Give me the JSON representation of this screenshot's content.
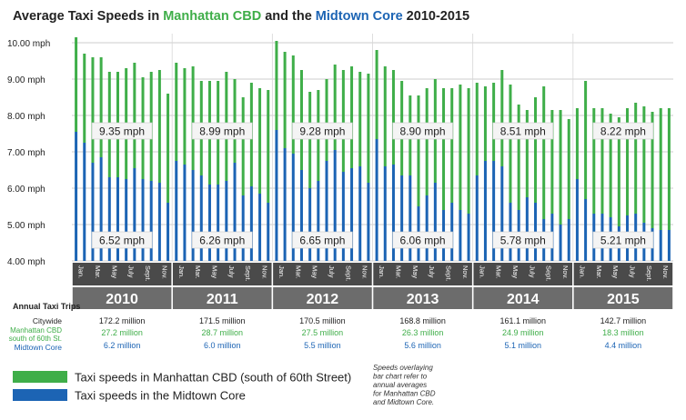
{
  "title": {
    "part1": "Average Taxi Speeds in ",
    "part2": "Manhattan CBD",
    "part3": " and the ",
    "part4": "Midtown Core",
    "part5": " 2010-2015"
  },
  "colors": {
    "cbd": "#3fae49",
    "midtown": "#1c64b4",
    "title_dark": "#222222",
    "band": "#6c6c6c",
    "band_text": "#ffffff",
    "label_box": "#f4f4f4"
  },
  "chart_data": {
    "type": "bar",
    "title": "Average Taxi Speeds in Manhattan CBD and the Midtown Core 2010-2015",
    "ylim": [
      4,
      10.25
    ],
    "y_ticks": [
      "4.00 mph",
      "5.00 mph",
      "6.00 mph",
      "7.00 mph",
      "8.00 mph",
      "9.00 mph",
      "10.00 mph"
    ],
    "y_tick_values": [
      4,
      5,
      6,
      7,
      8,
      9,
      10
    ],
    "month_labels": [
      "Jan.",
      "Mar.",
      "May",
      "July",
      "Sept.",
      "Nov."
    ],
    "month_label_positions": [
      0,
      2,
      4,
      6,
      8,
      10
    ],
    "years": [
      "2010",
      "2011",
      "2012",
      "2013",
      "2014",
      "2015"
    ],
    "series": [
      {
        "name": "Taxi speeds in Manhattan CBD (south of 60th Street)",
        "color": "#3fae49",
        "values": [
          [
            10.15,
            9.7,
            9.6,
            9.6,
            9.2,
            9.2,
            9.3,
            9.45,
            9.05,
            9.2,
            9.25,
            8.6
          ],
          [
            9.45,
            9.3,
            9.35,
            8.95,
            8.95,
            8.95,
            9.2,
            9.0,
            8.5,
            8.9,
            8.75,
            8.7
          ],
          [
            10.05,
            9.75,
            9.65,
            9.25,
            8.65,
            8.7,
            9.0,
            9.4,
            9.25,
            9.35,
            9.2,
            9.15
          ],
          [
            9.8,
            9.35,
            9.25,
            8.95,
            8.55,
            8.55,
            8.75,
            9.0,
            8.75,
            8.75,
            8.85,
            8.75
          ],
          [
            8.9,
            8.8,
            8.9,
            9.25,
            8.85,
            8.3,
            8.15,
            8.5,
            8.8,
            8.15,
            8.15,
            7.9
          ],
          [
            8.2,
            8.95,
            8.2,
            8.2,
            8.05,
            7.95,
            8.2,
            8.35,
            8.25,
            8.1,
            8.2,
            8.2
          ]
        ]
      },
      {
        "name": "Taxi speeds in the Midtown Core",
        "color": "#1c64b4",
        "values": [
          [
            7.55,
            7.25,
            6.7,
            6.85,
            6.3,
            6.3,
            6.25,
            6.55,
            6.25,
            6.2,
            6.15,
            5.6
          ],
          [
            6.75,
            6.65,
            6.5,
            6.35,
            6.1,
            6.1,
            6.2,
            6.7,
            5.8,
            6.05,
            5.85,
            5.6
          ],
          [
            7.6,
            7.1,
            6.95,
            6.5,
            6.0,
            6.2,
            6.75,
            7.05,
            6.45,
            6.55,
            6.6,
            6.15
          ],
          [
            7.35,
            6.6,
            6.65,
            6.35,
            6.35,
            5.5,
            5.8,
            6.15,
            5.4,
            5.6,
            5.4,
            5.3
          ],
          [
            6.35,
            6.75,
            6.75,
            6.6,
            5.6,
            5.4,
            5.75,
            5.6,
            5.15,
            5.3,
            5.0,
            5.15
          ],
          [
            6.25,
            5.7,
            5.3,
            5.3,
            5.2,
            4.95,
            5.25,
            5.3,
            5.05,
            4.9,
            4.85,
            4.85
          ]
        ]
      }
    ],
    "annual_averages": {
      "cbd": [
        "9.35 mph",
        "8.99 mph",
        "9.28 mph",
        "8.90 mph",
        "8.51 mph",
        "8.22 mph"
      ],
      "midtown": [
        "6.52 mph",
        "6.26 mph",
        "6.65 mph",
        "6.06 mph",
        "5.78 mph",
        "5.21 mph"
      ]
    },
    "legend_placement": "bottom-left",
    "grid": true
  },
  "trips": {
    "header": "Annual Taxi Trips",
    "row_labels": {
      "citywide": "Citywide",
      "cbd_line1": "Manhattan CBD",
      "cbd_line2": "south of 60th St.",
      "midtown": "Midtown Core"
    },
    "citywide": [
      "172.2 million",
      "171.5 million",
      "170.5 million",
      "168.8 million",
      "161.1 million",
      "142.7 million"
    ],
    "cbd": [
      "27.2 million",
      "28.7 million",
      "27.5 million",
      "26.3 million",
      "24.9 million",
      "18.3 million"
    ],
    "midtown": [
      "6.2 million",
      "6.0 million",
      "5.5 million",
      "5.6 million",
      "5.1 million",
      "4.4 million"
    ]
  },
  "legend": {
    "cbd_label": "Taxi speeds in Manhattan CBD (south of 60th Street)",
    "midtown_label": "Taxi speeds in the Midtown Core"
  },
  "note": [
    "Speeds overlaying",
    "bar chart refer to",
    "annual averages",
    "for Manhattan CBD",
    "and Midtown Core."
  ]
}
